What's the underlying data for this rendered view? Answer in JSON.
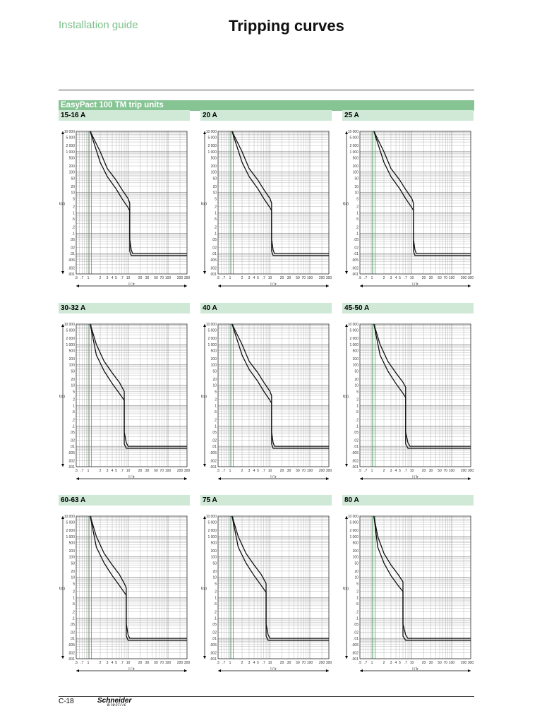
{
  "header": {
    "guide": "Installation guide",
    "title": "Tripping curves"
  },
  "section_title": "EasyPact 100 TM trip units",
  "footer": {
    "page": "C-18",
    "brand": "Schneider",
    "brand_sub": "Electric"
  },
  "axes": {
    "y_label": "t(s)",
    "x_label": "I / Ir",
    "y_ticks": [
      "10 000",
      "5 000",
      "2 000",
      "1 000",
      "500",
      "200",
      "100",
      "50",
      "20",
      "10",
      "5",
      "2",
      "1",
      ".5",
      ".2",
      ".1",
      ".05",
      ".02",
      ".01",
      ".005",
      ".002",
      ".001"
    ],
    "x_ticks": [
      ".5",
      ".7",
      "1",
      "2",
      "3",
      "4",
      "5",
      ".7",
      "10",
      "20",
      "30",
      "50",
      "70",
      "100",
      "200",
      "300"
    ]
  },
  "chart_data": [
    {
      "type": "line",
      "panel": "15-16 A",
      "ref": "DB115731.eps",
      "x": [
        1.12,
        2,
        3,
        5,
        7,
        10,
        11,
        11,
        12,
        13,
        300
      ],
      "lower_t": [
        10000,
        300,
        60,
        15,
        5,
        1.8,
        1.3,
        0.013,
        0.008,
        0.008,
        0.008
      ],
      "upper_t": [
        10000,
        1000,
        150,
        40,
        14,
        5,
        3,
        0.05,
        0.015,
        0.01,
        0.01
      ]
    },
    {
      "type": "line",
      "panel": "20 A",
      "ref": "DB115732.eps",
      "x": [
        1.12,
        2,
        3,
        5,
        7,
        10,
        11,
        11,
        12,
        13,
        300
      ],
      "lower_t": [
        10000,
        300,
        60,
        15,
        5,
        1.8,
        1.3,
        0.013,
        0.008,
        0.008,
        0.008
      ],
      "upper_t": [
        10000,
        1000,
        150,
        40,
        14,
        5,
        3,
        0.05,
        0.015,
        0.01,
        0.01
      ]
    },
    {
      "type": "line",
      "panel": "25 A",
      "ref": "DB115733.eps",
      "x": [
        1.12,
        2,
        3,
        5,
        7,
        10,
        11,
        11,
        12,
        13,
        300
      ],
      "lower_t": [
        10000,
        300,
        60,
        15,
        5,
        1.8,
        1.3,
        0.013,
        0.008,
        0.008,
        0.008
      ],
      "upper_t": [
        10000,
        1000,
        150,
        40,
        14,
        5,
        3,
        0.05,
        0.015,
        0.01,
        0.01
      ]
    },
    {
      "type": "line",
      "panel": "30-32 A",
      "ref": "DB115734.eps",
      "x": [
        1.12,
        1.6,
        2.5,
        4,
        6,
        8,
        8,
        9,
        10,
        300
      ],
      "lower_t": [
        10000,
        300,
        50,
        12,
        4,
        1.8,
        0.013,
        0.008,
        0.008,
        0.008
      ],
      "upper_t": [
        10000,
        1000,
        150,
        40,
        14,
        5,
        0.05,
        0.015,
        0.01,
        0.01
      ]
    },
    {
      "type": "line",
      "panel": "40 A",
      "ref": "DB115735.eps",
      "x": [
        1.12,
        2,
        3,
        5,
        7,
        10,
        11,
        11,
        12,
        13,
        300
      ],
      "lower_t": [
        10000,
        300,
        60,
        15,
        5,
        1.8,
        1.3,
        0.013,
        0.008,
        0.008,
        0.008
      ],
      "upper_t": [
        10000,
        1000,
        150,
        40,
        14,
        5,
        3,
        0.05,
        0.015,
        0.01,
        0.01
      ]
    },
    {
      "type": "line",
      "panel": "45-50 A",
      "ref": "DB115736.eps",
      "x": [
        1.12,
        1.6,
        2.5,
        4,
        6,
        7,
        7,
        8,
        9,
        300
      ],
      "lower_t": [
        10000,
        300,
        50,
        12,
        4,
        2.5,
        0.013,
        0.008,
        0.008,
        0.008
      ],
      "upper_t": [
        10000,
        1000,
        150,
        40,
        14,
        8,
        0.05,
        0.015,
        0.01,
        0.01
      ]
    },
    {
      "type": "line",
      "panel": "60-63 A",
      "ref": "DB115737.eps",
      "x": [
        1.12,
        1.6,
        2.5,
        4,
        6,
        8,
        9,
        9,
        10,
        11,
        300
      ],
      "lower_t": [
        10000,
        300,
        50,
        12,
        4,
        1.8,
        1.3,
        0.013,
        0.008,
        0.008,
        0.008
      ],
      "upper_t": [
        10000,
        1000,
        150,
        40,
        14,
        5,
        3,
        0.05,
        0.015,
        0.01,
        0.01
      ]
    },
    {
      "type": "line",
      "panel": "75 A",
      "ref": "DB115738.eps",
      "x": [
        1.12,
        1.6,
        2.5,
        4,
        6,
        8,
        8,
        9,
        10,
        300
      ],
      "lower_t": [
        10000,
        300,
        50,
        12,
        4,
        1.8,
        0.013,
        0.008,
        0.008,
        0.008
      ],
      "upper_t": [
        10000,
        1000,
        150,
        40,
        14,
        5,
        0.05,
        0.015,
        0.01,
        0.01
      ]
    },
    {
      "type": "line",
      "panel": "80 A",
      "ref": "DB115739.eps",
      "x": [
        1.12,
        1.4,
        2,
        3,
        4.5,
        6,
        6,
        7,
        8,
        300
      ],
      "lower_t": [
        10000,
        300,
        50,
        12,
        4,
        2,
        0.013,
        0.008,
        0.008,
        0.008
      ],
      "upper_t": [
        10000,
        1000,
        150,
        40,
        14,
        6,
        0.05,
        0.015,
        0.01,
        0.01
      ]
    }
  ]
}
